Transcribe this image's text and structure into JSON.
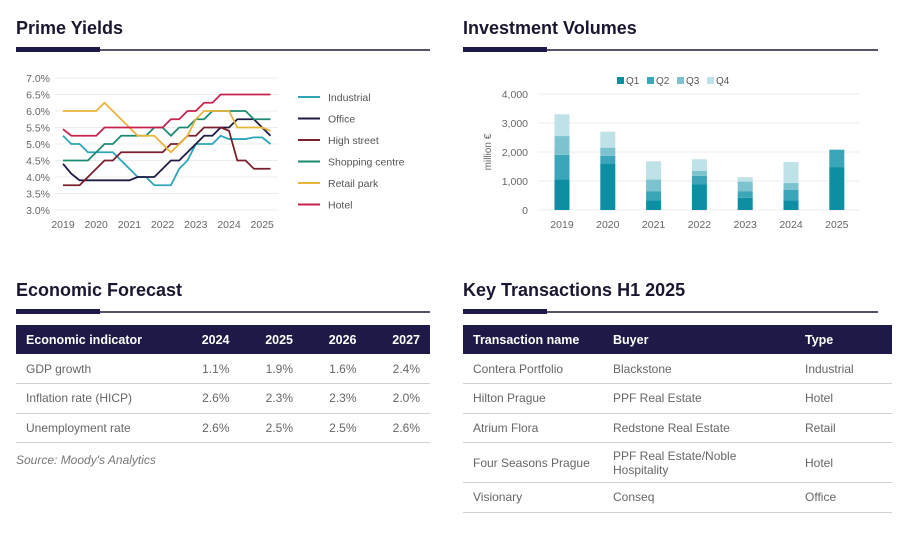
{
  "prime_yields": {
    "title": "Prime Yields"
  },
  "investment_volumes": {
    "title": "Investment Volumes"
  },
  "economic_forecast": {
    "title": "Economic Forecast",
    "headers": [
      "Economic indicator",
      "2024",
      "2025",
      "2026",
      "2027"
    ],
    "rows": [
      [
        "GDP growth",
        "1.1%",
        "1.9%",
        "1.6%",
        "2.4%"
      ],
      [
        "Inflation rate (HICP)",
        "2.6%",
        "2.3%",
        "2.3%",
        "2.0%"
      ],
      [
        "Unemployment rate",
        "2.6%",
        "2.5%",
        "2.5%",
        "2.6%"
      ]
    ],
    "source": "Source: Moody's Analytics"
  },
  "key_transactions": {
    "title": "Key Transactions H1 2025",
    "headers": [
      "Transaction name",
      "Buyer",
      "Type"
    ],
    "rows": [
      [
        "Contera Portfolio",
        "Blackstone",
        "Industrial"
      ],
      [
        "Hilton Prague",
        "PPF Real Estate",
        "Hotel"
      ],
      [
        "Atrium Flora",
        "Redstone Real Estate",
        "Retail"
      ],
      [
        "Four Seasons Prague",
        "PPF Real Estate/Noble Hospitality",
        "Hotel"
      ],
      [
        "Visionary",
        "Conseq",
        "Office"
      ]
    ]
  },
  "colors": {
    "navy": "#1e1a47"
  },
  "chart_data": [
    {
      "type": "line",
      "title": "Prime Yields",
      "x_ticks": [
        "2019",
        "2020",
        "2021",
        "2022",
        "2023",
        "2024",
        "2025"
      ],
      "y_ticks": [
        "3.0%",
        "3.5%",
        "4.0%",
        "4.5%",
        "5.0%",
        "5.5%",
        "6.0%",
        "6.5%",
        "7.0%"
      ],
      "ylim": [
        3.0,
        7.0
      ],
      "xlim": [
        2019,
        2025.25
      ],
      "grid": true,
      "legend": "right",
      "x": [
        2019,
        2019.25,
        2019.5,
        2019.75,
        2020,
        2020.25,
        2020.5,
        2020.75,
        2021,
        2021.25,
        2021.5,
        2021.75,
        2022,
        2022.25,
        2022.5,
        2022.75,
        2023,
        2023.25,
        2023.5,
        2023.75,
        2024,
        2024.25,
        2024.5,
        2024.75,
        2025,
        2025.25
      ],
      "series": [
        {
          "name": "Industrial",
          "color": "#2aa6b8",
          "values": [
            5.25,
            5.0,
            5.0,
            4.75,
            4.75,
            4.75,
            4.75,
            4.5,
            4.25,
            4.0,
            4.0,
            3.75,
            3.75,
            3.75,
            4.25,
            4.5,
            5.0,
            5.0,
            5.0,
            5.25,
            5.15,
            5.15,
            5.15,
            5.2,
            5.2,
            5.0
          ]
        },
        {
          "name": "Office",
          "color": "#1f1a45",
          "values": [
            4.4,
            4.1,
            3.9,
            3.9,
            3.9,
            3.9,
            3.9,
            3.9,
            3.9,
            4.0,
            4.0,
            4.0,
            4.25,
            4.5,
            4.5,
            4.75,
            5.0,
            5.25,
            5.25,
            5.5,
            5.5,
            5.75,
            5.75,
            5.75,
            5.5,
            5.25
          ]
        },
        {
          "name": "High street",
          "color": "#7a1f2b",
          "values": [
            3.75,
            3.75,
            3.75,
            4.0,
            4.25,
            4.5,
            4.5,
            4.75,
            4.75,
            4.75,
            4.75,
            4.75,
            4.75,
            5.0,
            5.0,
            5.25,
            5.25,
            5.5,
            5.5,
            5.5,
            5.4,
            4.5,
            4.5,
            4.25,
            4.25,
            4.25
          ]
        },
        {
          "name": "Shopping centre",
          "color": "#1c8a72",
          "values": [
            4.5,
            4.5,
            4.5,
            4.5,
            4.75,
            5.0,
            5.0,
            5.25,
            5.25,
            5.25,
            5.25,
            5.5,
            5.5,
            5.25,
            5.5,
            5.5,
            5.75,
            5.75,
            6.0,
            6.0,
            6.0,
            6.0,
            6.0,
            5.75,
            5.75,
            5.75
          ]
        },
        {
          "name": "Retail park",
          "color": "#e8b53a",
          "values": [
            6.0,
            6.0,
            6.0,
            6.0,
            6.0,
            6.25,
            6.0,
            5.75,
            5.5,
            5.25,
            5.25,
            5.25,
            5.0,
            4.75,
            5.0,
            5.25,
            5.75,
            6.0,
            6.0,
            6.0,
            6.0,
            5.5,
            5.5,
            5.5,
            5.5,
            5.4
          ]
        },
        {
          "name": "Hotel",
          "color": "#c8234f",
          "values": [
            5.45,
            5.25,
            5.25,
            5.25,
            5.25,
            5.5,
            5.5,
            5.5,
            5.5,
            5.5,
            5.5,
            5.5,
            5.5,
            5.75,
            5.75,
            6.0,
            6.0,
            6.25,
            6.25,
            6.5,
            6.5,
            6.5,
            6.5,
            6.5,
            6.5,
            6.5
          ]
        }
      ]
    },
    {
      "type": "bar",
      "stacked": true,
      "title": "Investment Volumes",
      "ylabel": "million €",
      "categories": [
        "2019",
        "2020",
        "2021",
        "2022",
        "2023",
        "2024",
        "2025"
      ],
      "y_ticks": [
        "0",
        "1,000",
        "2,000",
        "3,000",
        "4,000"
      ],
      "ylim": [
        0,
        4000
      ],
      "grid": true,
      "legend": "top",
      "series": [
        {
          "name": "Q1",
          "color": "#0e8ea3",
          "values": [
            1050,
            1600,
            330,
            880,
            420,
            330,
            1480
          ]
        },
        {
          "name": "Q2",
          "color": "#3ba6b8",
          "values": [
            850,
            270,
            320,
            300,
            230,
            370,
            600
          ]
        },
        {
          "name": "Q3",
          "color": "#7cc3cf",
          "values": [
            650,
            280,
            400,
            170,
            330,
            230,
            0
          ]
        },
        {
          "name": "Q4",
          "color": "#bfe2e8",
          "values": [
            750,
            550,
            630,
            400,
            150,
            730,
            0
          ]
        }
      ]
    }
  ]
}
